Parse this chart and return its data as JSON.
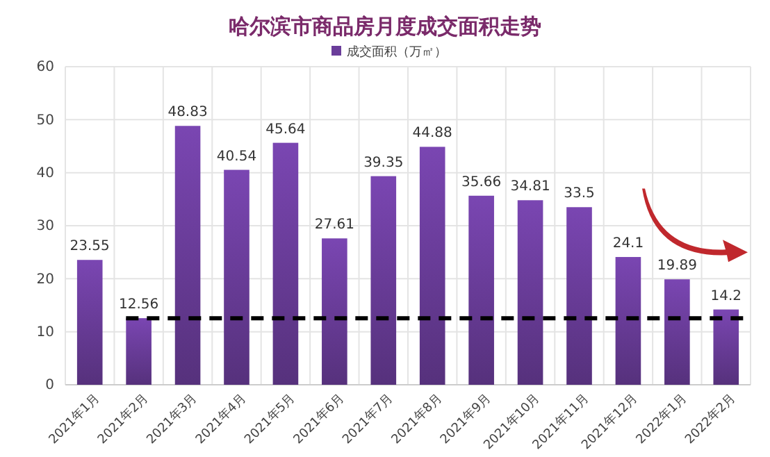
{
  "chart_data": {
    "type": "bar",
    "title": "哈尔滨市商品房月度成交面积走势",
    "categories": [
      "2021年1月",
      "2021年2月",
      "2021年3月",
      "2021年4月",
      "2021年5月",
      "2021年6月",
      "2021年7月",
      "2021年8月",
      "2021年9月",
      "2021年10月",
      "2021年11月",
      "2021年12月",
      "2022年1月",
      "2022年2月"
    ],
    "series": [
      {
        "name": "成交面积（万㎡）",
        "color": "#6a3d9a",
        "values": [
          23.55,
          12.56,
          48.83,
          40.54,
          45.64,
          27.61,
          39.35,
          44.88,
          35.66,
          34.81,
          33.5,
          24.1,
          19.89,
          14.2
        ]
      }
    ],
    "ylim": [
      0,
      60
    ],
    "yticks": [
      0,
      10,
      20,
      30,
      40,
      50,
      60
    ],
    "grid": true,
    "legend": "top",
    "data_labels": true,
    "ref_lines": [
      {
        "axis": "y",
        "value": 12.56,
        "color": "#000000",
        "line_style": "dashed"
      }
    ]
  }
}
